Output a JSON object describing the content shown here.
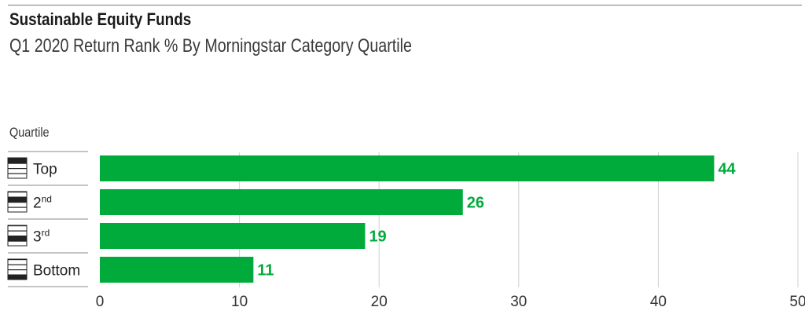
{
  "header": {
    "title": "Sustainable Equity Funds",
    "subtitle": "Q1 2020 Return Rank % By Morningstar Category Quartile"
  },
  "chart_data": {
    "type": "bar",
    "orientation": "horizontal",
    "title": "Sustainable Equity Funds",
    "subtitle": "Q1 2020 Return Rank % By Morningstar Category Quartile",
    "category_axis_label": "Quartile",
    "categories": [
      {
        "label": "Top",
        "sup": "",
        "icon": "quartile-top-icon"
      },
      {
        "label": "2",
        "sup": "nd",
        "icon": "quartile-2nd-icon"
      },
      {
        "label": "3",
        "sup": "rd",
        "icon": "quartile-3rd-icon"
      },
      {
        "label": "Bottom",
        "sup": "",
        "icon": "quartile-bottom-icon"
      }
    ],
    "values": [
      44,
      26,
      19,
      11
    ],
    "xlim": [
      0,
      50
    ],
    "xticks": [
      0,
      10,
      20,
      30,
      40,
      50
    ],
    "grid": true,
    "bar_color": "#00ab3c",
    "label_color": "#00ab3c"
  }
}
